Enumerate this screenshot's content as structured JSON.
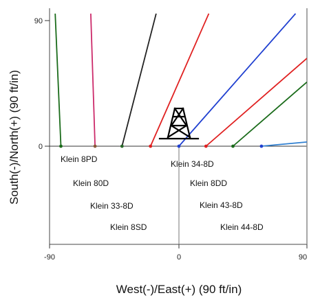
{
  "chart_data": {
    "type": "line",
    "xlabel": "West(-)/East(+) (90 ft/in)",
    "ylabel": "South(-)/North(+) (90 ft/in)",
    "xlim": [
      -90,
      90
    ],
    "ylim": [
      -68,
      95
    ],
    "x_ticks": [
      {
        "value": -90,
        "label": "-90"
      },
      {
        "value": 0,
        "label": "0"
      },
      {
        "value": 90,
        "label": "90"
      }
    ],
    "y_ticks": [
      {
        "value": 0,
        "label": "0"
      },
      {
        "value": 90,
        "label": "90"
      }
    ],
    "rig_icon": "drilling-rig-icon",
    "series": [
      {
        "color": "#1a6b1a",
        "start_color": "#1a6b1a",
        "x": [
          -83,
          -87
        ],
        "y": [
          0,
          95
        ]
      },
      {
        "color": "#cc2a6a",
        "start_color": "#8a5a3a",
        "x": [
          -59,
          -62
        ],
        "y": [
          0,
          95
        ]
      },
      {
        "color": "#222222",
        "start_color": "#2a6a2a",
        "x": [
          -40,
          -16
        ],
        "y": [
          0,
          95
        ]
      },
      {
        "color": "#e02020",
        "start_color": "#e02020",
        "x": [
          -20,
          21
        ],
        "y": [
          0,
          95
        ]
      },
      {
        "color": "#1f3fd0",
        "start_color": "#1f3fd0",
        "x": [
          0,
          82
        ],
        "y": [
          0,
          95
        ]
      },
      {
        "color": "#e02020",
        "start_color": "#e02020",
        "x": [
          19,
          90
        ],
        "y": [
          0,
          63
        ]
      },
      {
        "color": "#1a6b1a",
        "start_color": "#1a6b1a",
        "x": [
          38,
          90
        ],
        "y": [
          0,
          46
        ]
      },
      {
        "color": "#2f7fd0",
        "start_color": "#1f3fd0",
        "x": [
          58,
          90
        ],
        "y": [
          0,
          3
        ]
      }
    ],
    "labels": [
      {
        "text": "Klein 8PD"
      },
      {
        "text": "Klein 80D"
      },
      {
        "text": "Klein 33-8D"
      },
      {
        "text": "Klein 8SD"
      },
      {
        "text": "Klein 34-8D"
      },
      {
        "text": "Klein 8DD"
      },
      {
        "text": "Klein 43-8D"
      },
      {
        "text": "Klein 44-8D"
      }
    ]
  }
}
